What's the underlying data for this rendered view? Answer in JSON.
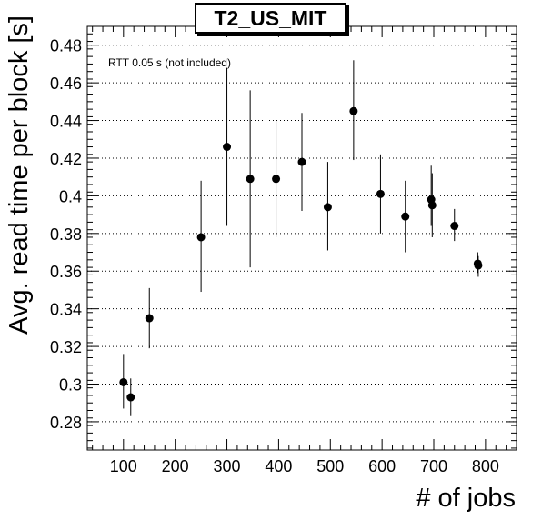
{
  "chart_data": {
    "type": "scatter",
    "title": "T2_US_MIT",
    "annotation": "RTT 0.05 s (not included)",
    "xlabel": "# of jobs",
    "ylabel": "Avg. read time per block [s]",
    "xlim": [
      30,
      860
    ],
    "ylim": [
      0.265,
      0.49
    ],
    "xticks": [
      100,
      200,
      300,
      400,
      500,
      600,
      700,
      800
    ],
    "yticks": [
      0.28,
      0.3,
      0.32,
      0.34,
      0.36,
      0.38,
      0.4,
      0.42,
      0.44,
      0.46,
      0.48
    ],
    "ytick_labels": [
      "0.28",
      "0.3",
      "0.32",
      "0.34",
      "0.36",
      "0.38",
      "0.4",
      "0.42",
      "0.44",
      "0.46",
      "0.48"
    ],
    "grid": "horizontal dotted",
    "points": [
      {
        "x": 100,
        "y": 0.301,
        "ylo": 0.287,
        "yhi": 0.316
      },
      {
        "x": 114,
        "y": 0.293,
        "ylo": 0.283,
        "yhi": 0.303
      },
      {
        "x": 150,
        "y": 0.335,
        "ylo": 0.319,
        "yhi": 0.351
      },
      {
        "x": 250,
        "y": 0.378,
        "ylo": 0.349,
        "yhi": 0.408
      },
      {
        "x": 300,
        "y": 0.426,
        "ylo": 0.384,
        "yhi": 0.468
      },
      {
        "x": 345,
        "y": 0.409,
        "ylo": 0.362,
        "yhi": 0.456
      },
      {
        "x": 395,
        "y": 0.409,
        "ylo": 0.378,
        "yhi": 0.44
      },
      {
        "x": 445,
        "y": 0.418,
        "ylo": 0.392,
        "yhi": 0.444
      },
      {
        "x": 495,
        "y": 0.394,
        "ylo": 0.371,
        "yhi": 0.418
      },
      {
        "x": 545,
        "y": 0.445,
        "ylo": 0.419,
        "yhi": 0.472
      },
      {
        "x": 597,
        "y": 0.401,
        "ylo": 0.38,
        "yhi": 0.422
      },
      {
        "x": 645,
        "y": 0.389,
        "ylo": 0.37,
        "yhi": 0.408
      },
      {
        "x": 695,
        "y": 0.398,
        "ylo": 0.384,
        "yhi": 0.416
      },
      {
        "x": 697,
        "y": 0.395,
        "ylo": 0.378,
        "yhi": 0.412
      },
      {
        "x": 740,
        "y": 0.384,
        "ylo": 0.376,
        "yhi": 0.393
      },
      {
        "x": 785,
        "y": 0.364,
        "ylo": 0.359,
        "yhi": 0.37
      },
      {
        "x": 786,
        "y": 0.363,
        "ylo": 0.357,
        "yhi": 0.368
      }
    ],
    "marker_color": "#000000"
  }
}
